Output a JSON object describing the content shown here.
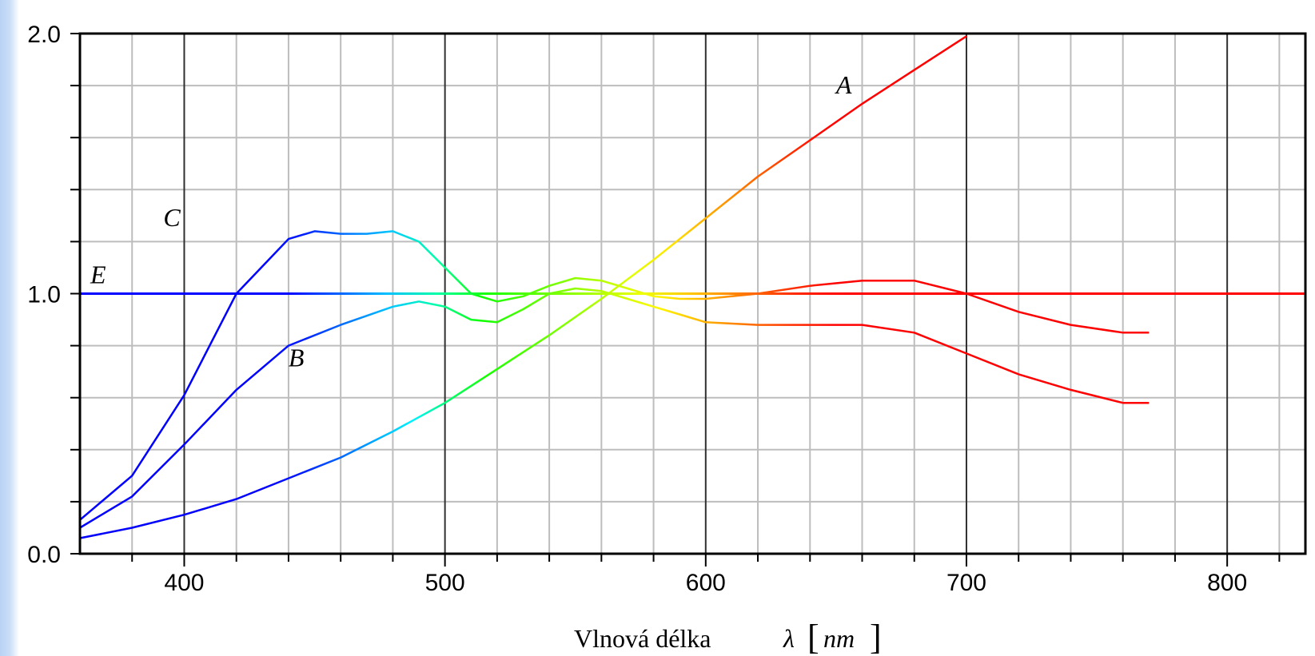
{
  "chart_data": {
    "type": "line",
    "title": "",
    "xlabel": "Vlnová délka",
    "xlabel_symbol": "λ",
    "xlabel_unit": "nm",
    "ylabel": "",
    "xlim": [
      360,
      830
    ],
    "ylim": [
      0,
      2
    ],
    "grid": true,
    "x_ticks": [
      400,
      500,
      600,
      700,
      800
    ],
    "x_tick_labels": [
      "400",
      "500",
      "600",
      "700",
      "800"
    ],
    "y_ticks": [
      0,
      1,
      2
    ],
    "y_tick_labels": [
      "0.0",
      "1.0",
      "2.0"
    ],
    "series": [
      {
        "name": "A",
        "x": [
          360,
          380,
          400,
          420,
          440,
          460,
          480,
          500,
          520,
          540,
          560,
          580,
          600,
          620,
          640,
          660,
          680,
          700
        ],
        "y": [
          0.06,
          0.1,
          0.15,
          0.21,
          0.29,
          0.37,
          0.47,
          0.58,
          0.71,
          0.84,
          0.98,
          1.13,
          1.29,
          1.45,
          1.59,
          1.73,
          1.86,
          1.99
        ]
      },
      {
        "name": "B",
        "x": [
          360,
          380,
          400,
          420,
          440,
          460,
          480,
          490,
          500,
          510,
          520,
          530,
          540,
          550,
          560,
          570,
          580,
          590,
          600,
          620,
          640,
          660,
          680,
          700,
          720,
          740,
          760,
          770
        ],
        "y": [
          0.1,
          0.22,
          0.42,
          0.63,
          0.8,
          0.88,
          0.95,
          0.97,
          0.95,
          0.9,
          0.89,
          0.94,
          1.0,
          1.02,
          1.01,
          0.98,
          0.95,
          0.92,
          0.89,
          0.88,
          0.88,
          0.88,
          0.85,
          0.77,
          0.69,
          0.63,
          0.58,
          0.58
        ]
      },
      {
        "name": "C",
        "x": [
          360,
          380,
          400,
          420,
          440,
          450,
          460,
          470,
          480,
          490,
          500,
          510,
          520,
          530,
          540,
          550,
          560,
          570,
          580,
          590,
          600,
          620,
          640,
          660,
          680,
          700,
          720,
          740,
          760,
          770
        ],
        "y": [
          0.13,
          0.3,
          0.61,
          1.0,
          1.21,
          1.24,
          1.23,
          1.23,
          1.24,
          1.2,
          1.1,
          1.0,
          0.97,
          0.99,
          1.03,
          1.06,
          1.05,
          1.02,
          0.99,
          0.98,
          0.98,
          1.0,
          1.03,
          1.05,
          1.05,
          1.0,
          0.93,
          0.88,
          0.85,
          0.85
        ]
      },
      {
        "name": "E",
        "x": [
          360,
          830
        ],
        "y": [
          1.0,
          1.0
        ]
      }
    ],
    "annotations": [
      {
        "text": "A",
        "x": 650,
        "y": 1.77
      },
      {
        "text": "B",
        "x": 440,
        "y": 0.72
      },
      {
        "text": "C",
        "x": 392,
        "y": 1.26
      },
      {
        "text": "E",
        "x": 364,
        "y": 1.04
      }
    ]
  }
}
